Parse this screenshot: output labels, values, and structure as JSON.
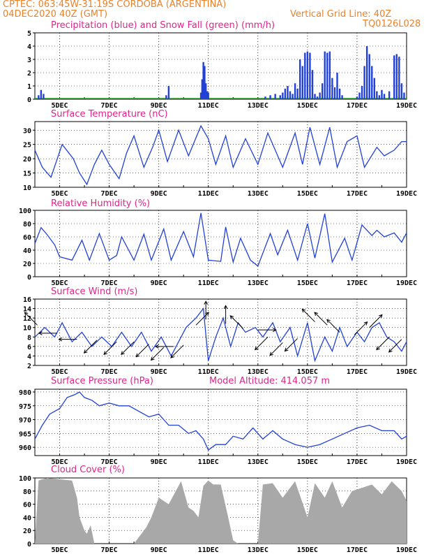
{
  "header": {
    "line1": "CPTEC:   063:45W-31:19S   CORDOBA (ARGENTINA)",
    "line2_left": "04DEC2020 40Z (GMT)",
    "line2_right": "Vertical Grid Line: 40Z",
    "line3_right": "TQ0126L028"
  },
  "colors": {
    "header": "#e8822a",
    "title": "#e0248a",
    "line": "#2040d8",
    "snow": "#22aa22",
    "cloud": "#a8a8a8"
  },
  "x_axis": {
    "categories": [
      "5DEC",
      "7DEC",
      "9DEC",
      "11DEC",
      "13DEC",
      "15DEC",
      "17DEC",
      "19DEC"
    ],
    "day_range": [
      4.0,
      19.0
    ]
  },
  "chart_data": [
    {
      "type": "bar",
      "title": "Precipitation (blue) and Snow Fall (green) (mm/h)",
      "ylim": [
        0,
        5
      ],
      "yticks": [
        "0",
        "1",
        "2",
        "3",
        "4",
        "5"
      ],
      "series": [
        {
          "name": "Precipitation",
          "x": [
            4.15,
            4.25,
            4.35,
            9.3,
            9.4,
            10.7,
            10.75,
            10.8,
            10.85,
            10.9,
            10.95,
            11.0,
            13.3,
            13.5,
            13.7,
            13.9,
            14.0,
            14.1,
            14.2,
            14.3,
            14.4,
            14.5,
            14.6,
            14.7,
            14.8,
            14.9,
            15.0,
            15.1,
            15.2,
            15.3,
            15.4,
            15.5,
            15.6,
            15.7,
            15.8,
            15.9,
            16.0,
            16.1,
            16.2,
            16.3,
            16.4,
            17.0,
            17.1,
            17.2,
            17.3,
            17.4,
            17.5,
            17.6,
            17.7,
            17.8,
            17.9,
            18.0,
            18.1,
            18.3,
            18.5,
            18.6,
            18.7,
            18.8,
            18.9
          ],
          "values": [
            0.3,
            0.7,
            0.4,
            0.3,
            1.0,
            0.5,
            1.5,
            2.8,
            2.5,
            1.2,
            0.6,
            0.5,
            0.2,
            0.3,
            0.4,
            0.3,
            0.5,
            0.8,
            1.0,
            0.6,
            0.4,
            1.2,
            0.8,
            3.0,
            2.5,
            3.5,
            3.6,
            3.5,
            2.2,
            0.4,
            0.2,
            0.5,
            1.2,
            3.6,
            3.5,
            3.6,
            1.6,
            0.9,
            2.0,
            0.8,
            0.3,
            0.2,
            0.5,
            1.0,
            2.5,
            4.0,
            3.4,
            2.5,
            1.6,
            0.6,
            0.3,
            0.7,
            0.4,
            0.6,
            3.3,
            3.4,
            3.2,
            1.2,
            0.5
          ]
        }
      ]
    },
    {
      "type": "line",
      "title": "Surface Temperature (nC)",
      "ylim": [
        10,
        33
      ],
      "yticks": [
        "10",
        "15",
        "20",
        "25",
        "30"
      ],
      "series": [
        {
          "x": [
            4.0,
            4.3,
            4.65,
            5.1,
            5.55,
            5.8,
            6.1,
            6.4,
            6.7,
            7.0,
            7.4,
            7.7,
            8.0,
            8.4,
            8.75,
            9.0,
            9.35,
            9.8,
            10.2,
            10.7,
            11.0,
            11.3,
            11.7,
            12.0,
            12.5,
            13.0,
            13.4,
            14.0,
            14.5,
            14.8,
            15.1,
            15.5,
            15.9,
            16.2,
            16.6,
            17.0,
            17.3,
            17.8,
            18.1,
            18.5,
            18.8,
            19.0
          ],
          "values": [
            23,
            17,
            13.5,
            25,
            20,
            15,
            11,
            18,
            23,
            18,
            13,
            22,
            28,
            17,
            24,
            30,
            19,
            30,
            21,
            31.5,
            27,
            18,
            28,
            17,
            27,
            18,
            29,
            17,
            29,
            18,
            31,
            18,
            31,
            17,
            26,
            28,
            17,
            24,
            21,
            23,
            26,
            26
          ]
        }
      ]
    },
    {
      "type": "line",
      "title": "Relative Humidity (%)",
      "ylim": [
        0,
        100
      ],
      "yticks": [
        "0",
        "20",
        "40",
        "60",
        "80",
        "100"
      ],
      "series": [
        {
          "x": [
            4.0,
            4.25,
            4.5,
            4.8,
            5.0,
            5.5,
            5.9,
            6.2,
            6.6,
            7.0,
            7.3,
            7.5,
            8.0,
            8.4,
            8.7,
            9.2,
            9.5,
            10.0,
            10.4,
            10.7,
            11.0,
            11.5,
            11.7,
            12.0,
            12.3,
            12.7,
            13.0,
            13.5,
            13.8,
            14.2,
            14.6,
            15.0,
            15.3,
            15.7,
            16.0,
            16.5,
            16.8,
            17.2,
            17.6,
            17.8,
            18.1,
            18.5,
            18.8,
            19.0
          ],
          "values": [
            50,
            74,
            63,
            48,
            30,
            25,
            55,
            25,
            65,
            25,
            32,
            60,
            25,
            64,
            25,
            72,
            25,
            68,
            30,
            96,
            25,
            23,
            75,
            22,
            58,
            25,
            16,
            65,
            33,
            70,
            25,
            80,
            28,
            95,
            22,
            58,
            25,
            78,
            62,
            70,
            60,
            66,
            52,
            66
          ]
        }
      ]
    },
    {
      "type": "line",
      "title": "Surface Wind (m/s)",
      "ylim": [
        2,
        16
      ],
      "yticks": [
        "2",
        "4",
        "6",
        "8",
        "10",
        "12",
        "14",
        "16"
      ],
      "series": [
        {
          "x": [
            4.0,
            4.4,
            4.8,
            5.1,
            5.5,
            5.9,
            6.3,
            6.7,
            7.1,
            7.5,
            7.9,
            8.3,
            8.7,
            9.1,
            9.5,
            9.8,
            10.1,
            10.5,
            10.8,
            11.0,
            11.3,
            11.6,
            11.9,
            12.2,
            12.5,
            12.9,
            13.2,
            13.6,
            13.9,
            14.3,
            14.6,
            15.0,
            15.3,
            15.7,
            16.0,
            16.3,
            16.6,
            17.0,
            17.3,
            17.6,
            17.9,
            18.2,
            18.5,
            18.8,
            19.0
          ],
          "values": [
            8,
            10,
            8,
            11,
            7,
            9,
            6,
            8,
            6,
            9,
            6,
            9,
            5,
            8,
            4,
            7,
            10,
            12,
            14,
            3,
            8,
            12,
            6,
            11,
            9,
            10,
            8,
            11,
            7,
            10,
            4,
            11,
            3,
            8,
            5,
            10,
            6,
            9,
            7,
            10,
            11,
            8,
            7,
            5,
            7
          ]
        }
      ],
      "vectors": [
        {
          "day": 4.1,
          "v": 10.5,
          "dir": "NW"
        },
        {
          "day": 4.9,
          "v": 8.8,
          "dir": "W"
        },
        {
          "day": 5.7,
          "v": 7.5,
          "dir": "W"
        },
        {
          "day": 6.5,
          "v": 7.3,
          "dir": "SW"
        },
        {
          "day": 7.3,
          "v": 7.0,
          "dir": "SW"
        },
        {
          "day": 8.0,
          "v": 7.0,
          "dir": "SW"
        },
        {
          "day": 8.6,
          "v": 6.5,
          "dir": "SW"
        },
        {
          "day": 9.2,
          "v": 5.8,
          "dir": "SW"
        },
        {
          "day": 9.6,
          "v": 6.0,
          "dir": "W"
        },
        {
          "day": 10.0,
          "v": 6.3,
          "dir": "SW"
        },
        {
          "day": 10.5,
          "v": 10.5,
          "dir": "NE"
        },
        {
          "day": 10.9,
          "v": 11.7,
          "dir": "N"
        },
        {
          "day": 11.7,
          "v": 10.8,
          "dir": "N"
        },
        {
          "day": 12.4,
          "v": 9.8,
          "dir": "NW"
        },
        {
          "day": 13.0,
          "v": 9.5,
          "dir": "E"
        },
        {
          "day": 13.4,
          "v": 8.0,
          "dir": "SW"
        },
        {
          "day": 14.0,
          "v": 6.8,
          "dir": "SW"
        },
        {
          "day": 14.6,
          "v": 7.7,
          "dir": "SW"
        },
        {
          "day": 15.3,
          "v": 11.2,
          "dir": "NW"
        },
        {
          "day": 15.8,
          "v": 10.5,
          "dir": "NW"
        },
        {
          "day": 16.3,
          "v": 9.0,
          "dir": "NW"
        },
        {
          "day": 16.9,
          "v": 8.5,
          "dir": "NE"
        },
        {
          "day": 17.5,
          "v": 10.0,
          "dir": "NE"
        },
        {
          "day": 18.3,
          "v": 8.0,
          "dir": "SW"
        },
        {
          "day": 18.8,
          "v": 7.5,
          "dir": "SW"
        }
      ]
    },
    {
      "type": "line",
      "title": "Surface Pressure (hPa)",
      "subtitle": "Model Altitude: 414.057 m",
      "ylim": [
        957,
        981
      ],
      "yticks": [
        "960",
        "965",
        "970",
        "975",
        "980"
      ],
      "series": [
        {
          "x": [
            4.0,
            4.3,
            4.6,
            5.0,
            5.3,
            5.6,
            5.8,
            6.0,
            6.3,
            6.6,
            7.0,
            7.4,
            7.8,
            8.2,
            8.6,
            9.0,
            9.4,
            9.8,
            10.2,
            10.5,
            10.8,
            11.0,
            11.3,
            11.7,
            12.0,
            12.4,
            12.8,
            13.2,
            13.6,
            14.0,
            14.5,
            15.0,
            15.5,
            16.0,
            16.5,
            17.0,
            17.5,
            18.0,
            18.5,
            18.8,
            19.0
          ],
          "values": [
            963,
            968,
            972,
            974,
            978,
            979,
            980,
            978,
            977,
            975,
            976,
            975,
            975,
            973,
            971,
            972,
            968,
            968,
            965,
            966,
            963,
            959,
            961,
            961,
            964,
            963,
            967,
            963,
            966,
            963,
            961,
            960,
            961,
            963,
            965,
            967,
            968,
            966,
            966,
            963,
            964
          ]
        }
      ]
    },
    {
      "type": "area",
      "title": "Cloud Cover (%)",
      "ylim": [
        0,
        100
      ],
      "yticks": [
        "0",
        "20",
        "40",
        "60",
        "80",
        "100"
      ],
      "series": [
        {
          "x": [
            4.0,
            4.15,
            4.3,
            4.5,
            5.0,
            5.5,
            5.7,
            5.8,
            6.0,
            6.1,
            6.25,
            6.4,
            8.0,
            8.5,
            8.7,
            9.0,
            9.4,
            9.9,
            10.2,
            10.4,
            10.6,
            10.8,
            11.0,
            11.2,
            11.5,
            11.8,
            12.0,
            12.2,
            12.5,
            12.9,
            13.0,
            13.2,
            13.6,
            14.0,
            14.5,
            15.0,
            15.3,
            15.7,
            16.0,
            16.4,
            16.8,
            17.2,
            17.6,
            18.0,
            18.4,
            18.8,
            19.0
          ],
          "values": [
            0,
            96,
            98,
            100,
            98,
            96,
            70,
            40,
            20,
            15,
            28,
            0,
            0,
            25,
            40,
            70,
            60,
            95,
            55,
            50,
            40,
            88,
            96,
            90,
            90,
            40,
            5,
            0,
            0,
            0,
            0,
            90,
            92,
            70,
            95,
            40,
            92,
            70,
            95,
            55,
            80,
            85,
            90,
            75,
            95,
            80,
            65
          ]
        }
      ]
    }
  ]
}
